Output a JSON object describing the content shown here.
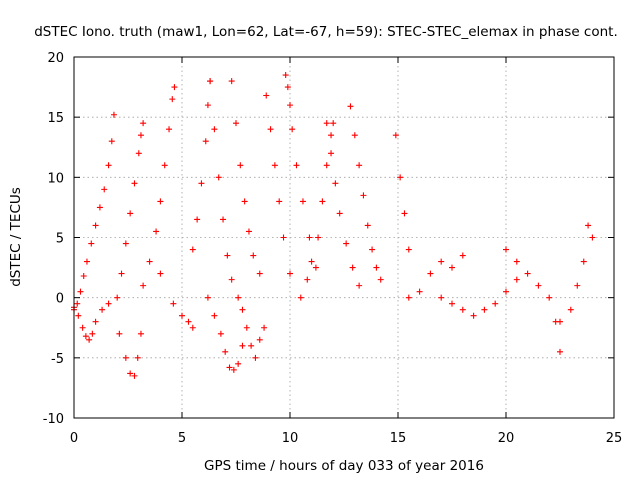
{
  "chart_data": {
    "type": "scatter",
    "title": "dSTEC Iono. truth (maw1, Lon=62, Lat=-67, h=59): STEC-STEC_elemax in phase cont.",
    "xlabel": "GPS time / hours of day 033 of year 2016",
    "ylabel": "dSTEC  / TECUs",
    "xlim": [
      0,
      25
    ],
    "ylim": [
      -10,
      20
    ],
    "xticks": [
      "0",
      "5",
      "10",
      "15",
      "20",
      "25"
    ],
    "yticks": [
      "-10",
      "-5",
      "0",
      "5",
      "10",
      "15",
      "20"
    ],
    "grid": true,
    "marker": "plus",
    "color": "#ff0000",
    "series": [
      {
        "x": [
          0.0,
          0.15,
          0.3,
          0.45,
          0.6,
          0.8,
          1.0,
          1.2,
          1.4,
          1.6,
          1.75,
          1.85
        ],
        "values": [
          -1.0,
          -0.5,
          0.5,
          1.8,
          3.0,
          4.5,
          6.0,
          7.5,
          9.0,
          11.0,
          13.0,
          15.2
        ]
      },
      {
        "x": [
          0.0,
          0.2,
          0.4,
          0.55,
          0.7,
          0.85,
          1.0,
          1.3,
          1.6
        ],
        "values": [
          -0.8,
          -1.5,
          -2.5,
          -3.2,
          -3.5,
          -3.0,
          -2.0,
          -1.0,
          -0.5
        ]
      },
      {
        "x": [
          2.0,
          2.2,
          2.4,
          2.6,
          2.8,
          3.0,
          3.1,
          3.2
        ],
        "values": [
          0.0,
          2.0,
          4.5,
          7.0,
          9.5,
          12.0,
          13.5,
          14.5
        ]
      },
      {
        "x": [
          2.1,
          2.4,
          2.6,
          2.8,
          2.95,
          3.1
        ],
        "values": [
          -3.0,
          -5.0,
          -6.3,
          -6.5,
          -5.0,
          -3.0
        ]
      },
      {
        "x": [
          3.2,
          3.5,
          3.8,
          4.0,
          4.2,
          4.4,
          4.55,
          4.65
        ],
        "values": [
          1.0,
          3.0,
          5.5,
          8.0,
          11.0,
          14.0,
          16.5,
          17.5
        ]
      },
      {
        "x": [
          4.0,
          4.6,
          5.0,
          5.3,
          5.5
        ],
        "values": [
          2.0,
          -0.5,
          -1.5,
          -2.0,
          -2.5
        ]
      },
      {
        "x": [
          5.5,
          5.7,
          5.9,
          6.1,
          6.2,
          6.3
        ],
        "values": [
          4.0,
          6.5,
          9.5,
          13.0,
          16.0,
          18.0
        ]
      },
      {
        "x": [
          6.3,
          6.5,
          6.7,
          6.9,
          7.1,
          7.3,
          7.6
        ],
        "values": [
          18.0,
          14.0,
          10.0,
          6.5,
          3.5,
          1.5,
          0.0
        ]
      },
      {
        "x": [
          6.2,
          6.5,
          6.8,
          7.0,
          7.2,
          7.4,
          7.6,
          7.8
        ],
        "values": [
          0.0,
          -1.5,
          -3.0,
          -4.5,
          -5.8,
          -6.0,
          -5.5,
          -4.0
        ]
      },
      {
        "x": [
          7.3,
          7.5,
          7.7,
          7.9,
          8.1,
          8.3,
          8.6
        ],
        "values": [
          18.0,
          14.5,
          11.0,
          8.0,
          5.5,
          3.5,
          2.0
        ]
      },
      {
        "x": [
          7.8,
          8.0,
          8.2,
          8.4,
          8.6,
          8.8
        ],
        "values": [
          -1.0,
          -2.5,
          -4.0,
          -5.0,
          -3.5,
          -2.5
        ]
      },
      {
        "x": [
          8.9,
          9.1,
          9.3,
          9.5,
          9.7,
          10.0
        ],
        "values": [
          16.8,
          14.0,
          11.0,
          8.0,
          5.0,
          2.0
        ]
      },
      {
        "x": [
          9.8,
          9.9,
          10.0,
          10.1,
          10.3,
          10.6,
          10.9,
          11.2
        ],
        "values": [
          18.5,
          17.5,
          16.0,
          14.0,
          11.0,
          8.0,
          5.0,
          2.5
        ]
      },
      {
        "x": [
          10.5,
          10.8,
          11.0,
          11.3,
          11.5,
          11.7,
          11.9,
          12.0
        ],
        "values": [
          0.0,
          1.5,
          3.0,
          5.0,
          8.0,
          11.0,
          13.5,
          14.5
        ]
      },
      {
        "x": [
          11.7,
          11.9,
          12.1,
          12.3,
          12.6,
          12.9,
          13.2
        ],
        "values": [
          14.5,
          12.0,
          9.5,
          7.0,
          4.5,
          2.5,
          1.0
        ]
      },
      {
        "x": [
          12.8,
          13.0,
          13.2,
          13.4,
          13.6,
          13.8,
          14.0,
          14.2
        ],
        "values": [
          15.9,
          13.5,
          11.0,
          8.5,
          6.0,
          4.0,
          2.5,
          1.5
        ]
      },
      {
        "x": [
          14.9,
          15.1,
          15.3,
          15.5
        ],
        "values": [
          13.5,
          10.0,
          7.0,
          4.0
        ]
      },
      {
        "x": [
          15.5,
          16.0,
          16.5,
          17.0,
          17.5,
          18.0
        ],
        "values": [
          0.0,
          0.5,
          2.0,
          3.0,
          2.5,
          3.5
        ]
      },
      {
        "x": [
          17.0,
          17.5,
          18.0,
          18.5,
          19.0,
          19.5,
          20.0,
          20.5
        ],
        "values": [
          0.0,
          -0.5,
          -1.0,
          -1.5,
          -1.0,
          -0.5,
          0.5,
          1.5
        ]
      },
      {
        "x": [
          20.0,
          20.5,
          21.0,
          21.5,
          22.0,
          22.3,
          22.5
        ],
        "values": [
          4.0,
          3.0,
          2.0,
          1.0,
          0.0,
          -2.0,
          -4.5
        ]
      },
      {
        "x": [
          22.5,
          23.0,
          23.3,
          23.6,
          23.8,
          24.0
        ],
        "values": [
          -2.0,
          -1.0,
          1.0,
          3.0,
          6.0,
          5.0
        ]
      }
    ]
  }
}
